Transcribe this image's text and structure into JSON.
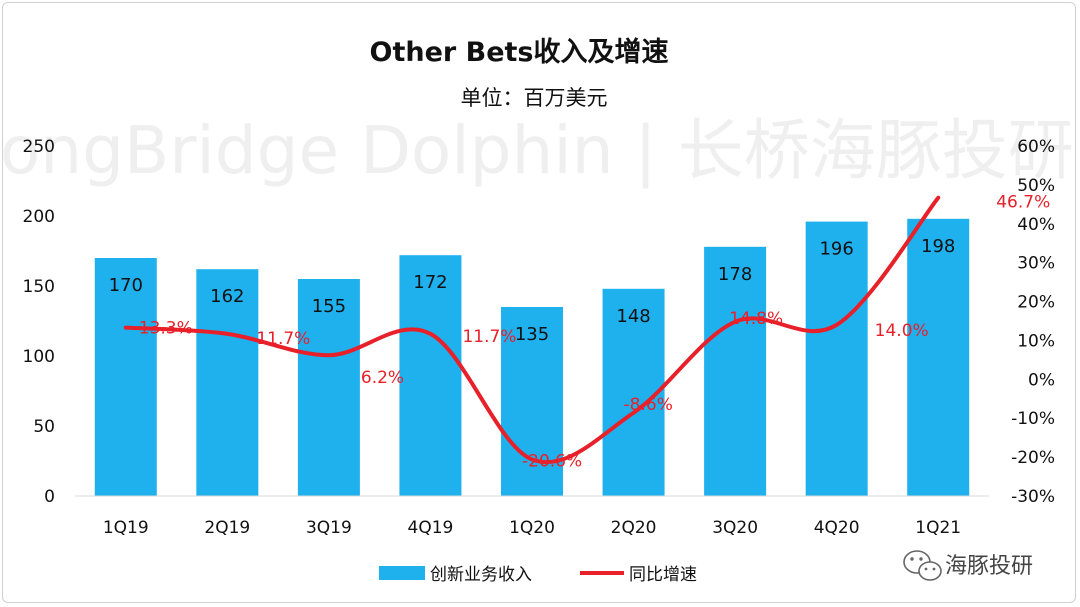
{
  "chart_data": {
    "type": "bar+line",
    "title": "Other Bets收入及增速",
    "subtitle": "单位：百万美元",
    "categories": [
      "1Q19",
      "2Q19",
      "3Q19",
      "4Q19",
      "1Q20",
      "2Q20",
      "3Q20",
      "4Q20",
      "1Q21"
    ],
    "series": [
      {
        "name": "创新业务收入",
        "type": "bar",
        "axis": "left",
        "color": "#1fb0ee",
        "values": [
          170,
          162,
          155,
          172,
          135,
          148,
          178,
          196,
          198
        ],
        "labels": [
          "170",
          "162",
          "155",
          "172",
          "135",
          "148",
          "178",
          "196",
          "198"
        ]
      },
      {
        "name": "同比增速",
        "type": "line",
        "axis": "right",
        "color": "#e8202a",
        "values": [
          13.3,
          11.7,
          6.2,
          11.7,
          -20.6,
          -8.6,
          14.8,
          14.0,
          46.7
        ],
        "labels": [
          "13.3%",
          "11.7%",
          "6.2%",
          "11.7%",
          "-20.6%",
          "-8.6%",
          "14.8%",
          "14.0%",
          "46.7%"
        ]
      }
    ],
    "left_axis": {
      "ylim": [
        0,
        250
      ],
      "ticks": [
        "0",
        "50",
        "100",
        "150",
        "200",
        "250"
      ]
    },
    "right_axis": {
      "ylim": [
        -30,
        60
      ],
      "ticks": [
        "-30%",
        "-20%",
        "-10%",
        "0%",
        "10%",
        "20%",
        "30%",
        "40%",
        "50%",
        "60%"
      ]
    },
    "grid": false,
    "legend": "bottom-center"
  },
  "watermark": "LongBridge Dolphin | 长桥海豚投研",
  "brand": {
    "text": "海豚投研",
    "icon": "wechat-icon"
  }
}
